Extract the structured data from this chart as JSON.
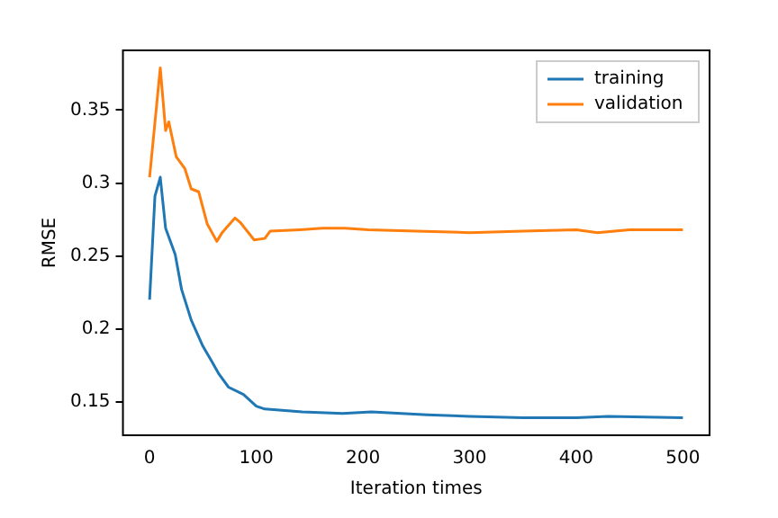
{
  "chart_data": {
    "type": "line",
    "xlabel": "Iteration times",
    "ylabel": "RMSE",
    "xlim": [
      -25,
      525
    ],
    "xticks": [
      0,
      100,
      200,
      300,
      400,
      500
    ],
    "ylim": [
      0.127,
      0.391
    ],
    "yticks": [
      0.15,
      0.2,
      0.25,
      0.3,
      0.35
    ],
    "legend": "top right",
    "grid": false,
    "series": [
      {
        "name": "training",
        "color": "#1f77b4",
        "x": [
          0,
          5,
          10,
          15,
          24,
          30,
          39,
          50,
          58,
          65,
          74,
          88,
          100,
          108,
          127,
          143,
          181,
          208,
          260,
          300,
          350,
          400,
          430,
          500
        ],
        "values": [
          0.22,
          0.291,
          0.304,
          0.269,
          0.251,
          0.227,
          0.206,
          0.188,
          0.178,
          0.169,
          0.16,
          0.155,
          0.147,
          0.145,
          0.144,
          0.143,
          0.142,
          0.143,
          0.141,
          0.14,
          0.139,
          0.139,
          0.14,
          0.139
        ]
      },
      {
        "name": "validation",
        "color": "#ff7f0e",
        "x": [
          0,
          10,
          15,
          18,
          25,
          33,
          39,
          46,
          54,
          63,
          68,
          80,
          85,
          98,
          108,
          113,
          141,
          162,
          183,
          205,
          250,
          300,
          350,
          400,
          420,
          450,
          500
        ],
        "values": [
          0.304,
          0.379,
          0.336,
          0.342,
          0.318,
          0.31,
          0.296,
          0.294,
          0.272,
          0.26,
          0.266,
          0.276,
          0.273,
          0.261,
          0.262,
          0.267,
          0.268,
          0.269,
          0.269,
          0.268,
          0.267,
          0.266,
          0.267,
          0.268,
          0.266,
          0.268,
          0.268
        ]
      }
    ]
  }
}
